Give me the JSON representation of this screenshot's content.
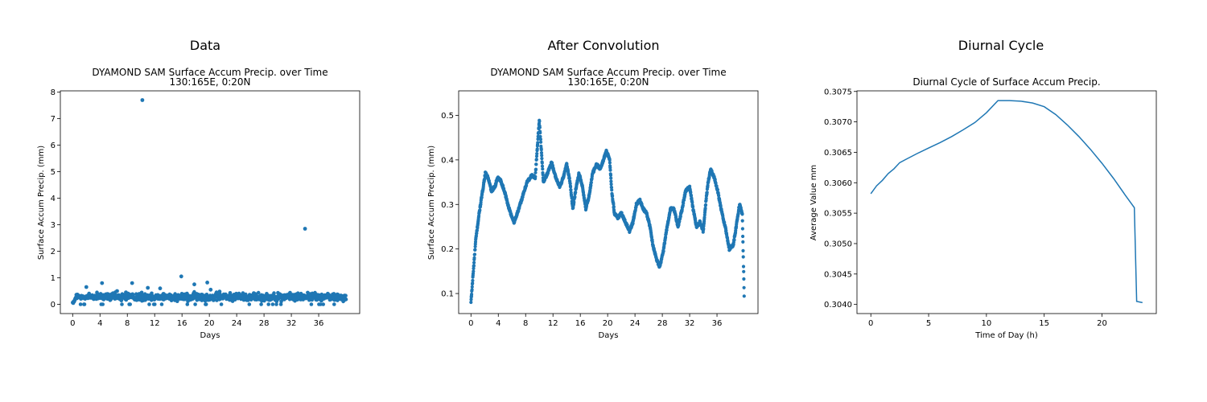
{
  "panels": [
    {
      "heading": "Data"
    },
    {
      "heading": "After Convolution"
    },
    {
      "heading": "Diurnal Cycle"
    }
  ],
  "chart_data": [
    {
      "type": "scatter",
      "title": "DYAMOND SAM Surface Accum Precip. over Time",
      "subtitle": "130:165E, 0:20N",
      "xlabel": "Days",
      "ylabel": "Surface Accum Precip. (mm)",
      "xlim": [
        -1.8,
        42
      ],
      "ylim": [
        -0.35,
        8.05
      ],
      "xticks": [
        0,
        4,
        8,
        12,
        16,
        20,
        24,
        28,
        32,
        36
      ],
      "yticks": [
        0,
        1,
        2,
        3,
        4,
        5,
        6,
        7,
        8
      ],
      "color": "#1f77b4",
      "x_range": [
        0,
        40
      ],
      "baseline": {
        "mean": 0.28,
        "spread": 0.14
      },
      "outliers": {
        "x": [
          10.2,
          34.0,
          15.9,
          4.3,
          8.7,
          17.8,
          19.7,
          12.8,
          2.0,
          20.2,
          11.0,
          6.5,
          21.5,
          7.8,
          26.5
        ],
        "y": [
          7.7,
          2.85,
          1.05,
          0.8,
          0.8,
          0.75,
          0.82,
          0.6,
          0.65,
          0.55,
          0.62,
          0.5,
          0.48,
          0.45,
          0.42
        ]
      }
    },
    {
      "type": "scatter",
      "title": "DYAMOND SAM Surface Accum Precip. over Time",
      "subtitle": "130:165E, 0:20N",
      "xlabel": "Days",
      "ylabel": "Surface Accum Precip. (mm)",
      "xlim": [
        -1.8,
        42
      ],
      "ylim": [
        0.055,
        0.555
      ],
      "xticks": [
        0,
        4,
        8,
        12,
        16,
        20,
        24,
        28,
        32,
        36
      ],
      "yticks": [
        0.1,
        0.2,
        0.3,
        0.4,
        0.5
      ],
      "color": "#1f77b4",
      "x": [
        0,
        0.3,
        0.7,
        1.2,
        1.7,
        2.1,
        2.5,
        3.0,
        3.5,
        3.9,
        4.3,
        4.9,
        5.4,
        5.8,
        6.3,
        7.0,
        7.6,
        8.2,
        8.9,
        9.4,
        10.0,
        10.6,
        11.2,
        11.8,
        12.4,
        13.0,
        13.5,
        14.0,
        14.5,
        14.9,
        15.3,
        15.8,
        16.3,
        16.8,
        17.3,
        17.8,
        18.4,
        18.9,
        19.4,
        19.8,
        20.3,
        20.6,
        21.0,
        21.5,
        22.0,
        22.6,
        23.2,
        23.7,
        24.2,
        24.7,
        25.2,
        25.7,
        26.2,
        26.6,
        27.1,
        27.6,
        28.1,
        28.6,
        29.2,
        29.7,
        30.3,
        30.9,
        31.4,
        32.0,
        32.5,
        33.0,
        33.5,
        34.0,
        34.4,
        34.7,
        35.1,
        35.6,
        36.1,
        36.6,
        37.2,
        37.8,
        38.4,
        38.9,
        39.3,
        39.7,
        40.0
      ],
      "y": [
        0.08,
        0.14,
        0.22,
        0.28,
        0.33,
        0.37,
        0.36,
        0.33,
        0.34,
        0.36,
        0.355,
        0.33,
        0.3,
        0.28,
        0.26,
        0.29,
        0.32,
        0.35,
        0.365,
        0.36,
        0.49,
        0.35,
        0.37,
        0.395,
        0.36,
        0.34,
        0.36,
        0.39,
        0.35,
        0.29,
        0.33,
        0.37,
        0.34,
        0.29,
        0.32,
        0.37,
        0.39,
        0.38,
        0.4,
        0.42,
        0.4,
        0.33,
        0.28,
        0.27,
        0.28,
        0.26,
        0.24,
        0.26,
        0.3,
        0.31,
        0.29,
        0.28,
        0.25,
        0.21,
        0.18,
        0.16,
        0.19,
        0.24,
        0.29,
        0.29,
        0.25,
        0.29,
        0.33,
        0.34,
        0.29,
        0.25,
        0.26,
        0.24,
        0.31,
        0.35,
        0.38,
        0.36,
        0.33,
        0.29,
        0.25,
        0.2,
        0.21,
        0.26,
        0.3,
        0.28,
        0.08
      ]
    },
    {
      "type": "line",
      "title": "Diurnal Cycle of Surface Accum Precip.",
      "xlabel": "Time of Day (h)",
      "ylabel": "Average Value mm",
      "xlim": [
        -1.2,
        24.7
      ],
      "ylim": [
        0.30385,
        0.30751
      ],
      "xticks": [
        0,
        5,
        10,
        15,
        20
      ],
      "yticks": [
        0.304,
        0.3045,
        0.305,
        0.3055,
        0.306,
        0.3065,
        0.307,
        0.3075
      ],
      "color": "#1f77b4",
      "x": [
        0,
        0.5,
        1,
        1.5,
        2,
        2.5,
        3,
        4,
        5,
        6,
        7,
        8,
        9,
        10,
        11,
        12,
        13,
        14,
        15,
        16,
        17,
        18,
        19,
        20,
        21,
        22,
        22.8,
        23.0,
        23.5
      ],
      "y": [
        0.30582,
        0.30595,
        0.30604,
        0.30615,
        0.30623,
        0.30633,
        0.30638,
        0.30648,
        0.30657,
        0.30666,
        0.30676,
        0.30687,
        0.30699,
        0.30715,
        0.30735,
        0.30735,
        0.30734,
        0.30731,
        0.30725,
        0.30712,
        0.30695,
        0.30676,
        0.30655,
        0.30632,
        0.30607,
        0.3058,
        0.30559,
        0.30405,
        0.30403
      ]
    }
  ]
}
